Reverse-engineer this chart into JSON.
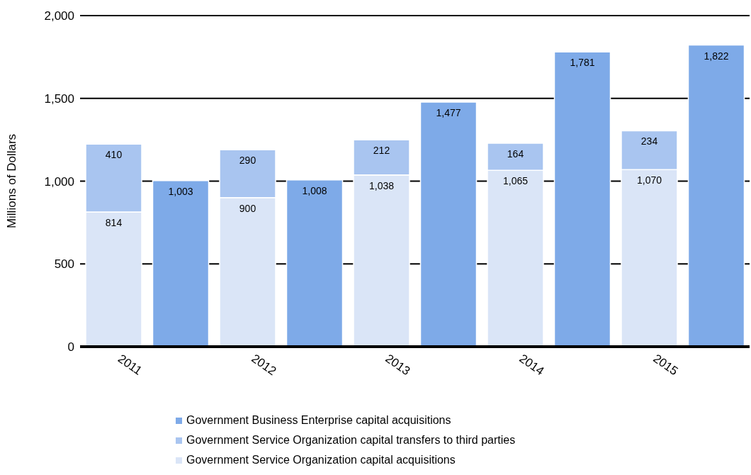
{
  "chart_data": {
    "type": "bar",
    "ylabel": "Millions of Dollars",
    "categories": [
      "2011",
      null,
      "2012",
      null,
      "2013",
      null,
      "2014",
      null,
      "2015",
      null
    ],
    "series": [
      {
        "name": "Government Service Organization capital acquisitions",
        "color": "#dae5f7",
        "values": [
          814,
          null,
          900,
          null,
          1038,
          null,
          1065,
          null,
          1070,
          null
        ],
        "value_labels": [
          "814",
          null,
          "900",
          null,
          "1,038",
          null,
          "1,065",
          null,
          "1,070",
          null
        ]
      },
      {
        "name": "Government Service Organization capital transfers to third parties",
        "color": "#a9c5f0",
        "values": [
          410,
          null,
          290,
          null,
          212,
          null,
          164,
          null,
          234,
          null
        ],
        "value_labels": [
          "410",
          null,
          "290",
          null,
          "212",
          null,
          "164",
          null,
          "234",
          null
        ]
      },
      {
        "name": "Government Business Enterprise capital acquisitions",
        "color": "#7eaae8",
        "values": [
          null,
          1003,
          null,
          1008,
          null,
          1477,
          null,
          1781,
          null,
          1822
        ],
        "value_labels": [
          null,
          "1,003",
          null,
          "1,008",
          null,
          "1,477",
          null,
          "1,781",
          null,
          "1,822"
        ]
      }
    ],
    "stacked": true,
    "ylim": [
      0,
      2000
    ],
    "yticks": [
      0,
      500,
      {
        "value": 1000,
        "label": "1,000"
      },
      {
        "value": 1500,
        "label": "1,500"
      },
      {
        "value": 2000,
        "label": "2,000"
      }
    ],
    "grid": "y",
    "legend": "bottom"
  }
}
